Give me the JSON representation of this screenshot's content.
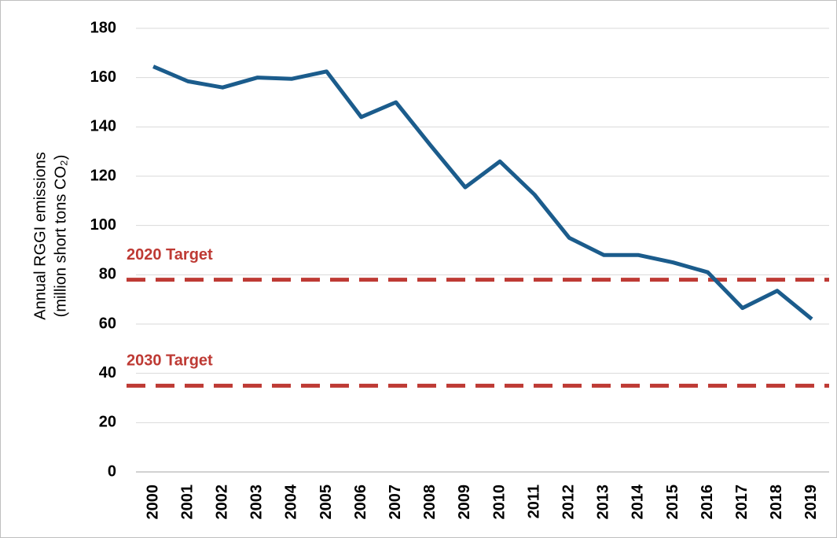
{
  "chart_data": {
    "type": "line",
    "y_label": [
      "Annual RGGI emissions",
      "(million short tons CO₂)"
    ],
    "categories": [
      "2000",
      "2001",
      "2002",
      "2003",
      "2004",
      "2005",
      "2006",
      "2007",
      "2008",
      "2009",
      "2010",
      "2011",
      "2012",
      "2013",
      "2014",
      "2015",
      "2016",
      "2017",
      "2018",
      "2019"
    ],
    "values": [
      164.5,
      158.5,
      156,
      160,
      159.5,
      162.5,
      144,
      150,
      132.5,
      115.5,
      126,
      112.5,
      95,
      88,
      88,
      85,
      81,
      66.5,
      73.5,
      62
    ],
    "color": "#1b5c8c",
    "ylim": [
      0,
      180
    ],
    "yticks": [
      0,
      20,
      40,
      60,
      80,
      100,
      120,
      140,
      160,
      180
    ],
    "grid": true,
    "reference_lines": [
      {
        "label": "2020 Target",
        "value": 78,
        "color": "#be3a34"
      },
      {
        "label": "2030 Target",
        "value": 35,
        "color": "#be3a34"
      }
    ]
  }
}
